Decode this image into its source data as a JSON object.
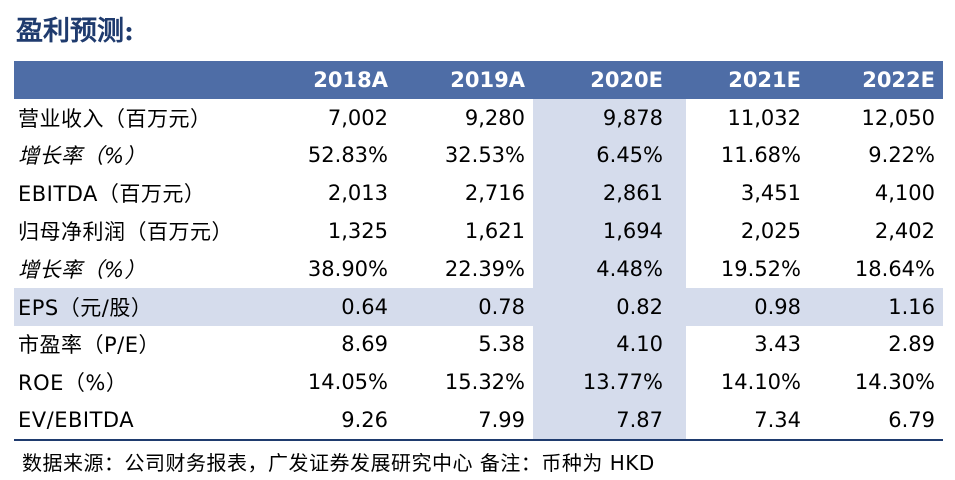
{
  "title": "盈利预测:",
  "table": {
    "headers": [
      "",
      "2018A",
      "2019A",
      "2020E",
      "2021E",
      "2022E"
    ],
    "rows": [
      {
        "label": "营业收入（百万元）",
        "values": [
          "7,002",
          "9,280",
          "9,878",
          "11,032",
          "12,050"
        ],
        "italic": false
      },
      {
        "label": "增长率（%）",
        "values": [
          "52.83%",
          "32.53%",
          "6.45%",
          "11.68%",
          "9.22%"
        ],
        "italic": true
      },
      {
        "label": "EBITDA（百万元）",
        "values": [
          "2,013",
          "2,716",
          "2,861",
          "3,451",
          "4,100"
        ],
        "italic": false
      },
      {
        "label": "归母净利润（百万元）",
        "values": [
          "1,325",
          "1,621",
          "1,694",
          "2,025",
          "2,402"
        ],
        "italic": false
      },
      {
        "label": "增长率（%）",
        "values": [
          "38.90%",
          "22.39%",
          "4.48%",
          "19.52%",
          "18.64%"
        ],
        "italic": true
      },
      {
        "label": "EPS（元/股）",
        "values": [
          "0.64",
          "0.78",
          "0.82",
          "0.98",
          "1.16"
        ],
        "italic": false
      },
      {
        "label": "市盈率（P/E）",
        "values": [
          "8.69",
          "5.38",
          "4.10",
          "3.43",
          "2.89"
        ],
        "italic": false
      },
      {
        "label": "ROE（%）",
        "values": [
          "14.05%",
          "15.32%",
          "13.77%",
          "14.10%",
          "14.30%"
        ],
        "italic": false
      },
      {
        "label": "EV/EBITDA",
        "values": [
          "9.26",
          "7.99",
          "7.87",
          "7.34",
          "6.79"
        ],
        "italic": false
      }
    ],
    "shaded_row_index": 5,
    "highlight_column": "2020E"
  },
  "source": "数据来源：公司财务报表，广发证券发展研究中心 备注：币种为 HKD",
  "colors": {
    "title": "#1f3b6e",
    "header_bg": "#4e6da6",
    "highlight": "#d5dcec"
  }
}
